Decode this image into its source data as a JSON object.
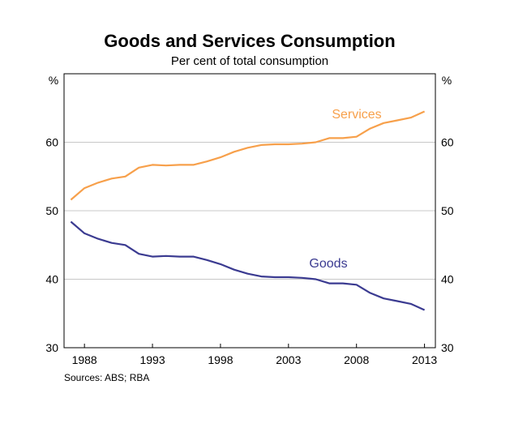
{
  "chart_data": {
    "type": "line",
    "title": "Goods and Services Consumption",
    "subtitle": "Per cent of total consumption",
    "ylabel_left": "%",
    "ylabel_right": "%",
    "ylim": [
      30,
      70
    ],
    "yticks": [
      30,
      40,
      50,
      60
    ],
    "xlim": [
      1986.5,
      2013.8
    ],
    "xticks": [
      1988,
      1993,
      1998,
      2003,
      2008,
      2013
    ],
    "grid": true,
    "source": "Sources: ABS; RBA",
    "x": [
      1987,
      1988,
      1989,
      1990,
      1991,
      1992,
      1993,
      1994,
      1995,
      1996,
      1997,
      1998,
      1999,
      2000,
      2001,
      2002,
      2003,
      2004,
      2005,
      2006,
      2007,
      2008,
      2009,
      2010,
      2011,
      2012,
      2013
    ],
    "series": [
      {
        "name": "Services",
        "color": "#F7A04B",
        "values": [
          51.6,
          53.3,
          54.1,
          54.7,
          55.0,
          56.3,
          56.7,
          56.6,
          56.7,
          56.7,
          57.2,
          57.8,
          58.6,
          59.2,
          59.6,
          59.7,
          59.7,
          59.8,
          60.0,
          60.6,
          60.6,
          60.8,
          62.0,
          62.8,
          63.2,
          63.6,
          64.5
        ]
      },
      {
        "name": "Goods",
        "color": "#3B3B91",
        "values": [
          48.4,
          46.7,
          45.9,
          45.3,
          45.0,
          43.7,
          43.3,
          43.4,
          43.3,
          43.3,
          42.8,
          42.2,
          41.4,
          40.8,
          40.4,
          40.3,
          40.3,
          40.2,
          40.0,
          39.4,
          39.4,
          39.2,
          38.0,
          37.2,
          36.8,
          36.4,
          35.5
        ]
      }
    ]
  }
}
